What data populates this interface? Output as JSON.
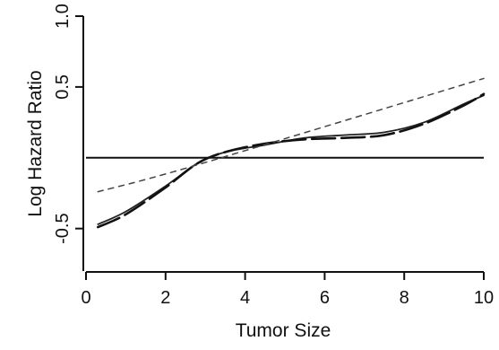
{
  "chart_data": {
    "type": "line",
    "title": "",
    "xlabel": "Tumor Size",
    "ylabel": "Log Hazard Ratio",
    "xlim": [
      0,
      10
    ],
    "ylim": [
      -0.8,
      1.0
    ],
    "x_ticks": [
      0,
      2,
      4,
      6,
      8,
      10
    ],
    "x_tick_labels": [
      "0",
      "2",
      "4",
      "6",
      "8",
      "10"
    ],
    "y_ticks": [
      -0.5,
      0.5,
      1.0
    ],
    "y_tick_labels": [
      "-0.5",
      "0.5",
      "1.0"
    ],
    "grid": false,
    "legend": "none",
    "reference_line": {
      "y": 0
    },
    "series": [
      {
        "style": "solid",
        "x": [
          0.3,
          1.0,
          2.0,
          2.8,
          3.5,
          4.5,
          5.5,
          6.5,
          7.5,
          8.5,
          9.5,
          10.0
        ],
        "y": [
          -0.47,
          -0.38,
          -0.2,
          -0.04,
          0.04,
          0.09,
          0.14,
          0.16,
          0.18,
          0.25,
          0.38,
          0.44
        ]
      },
      {
        "style": "long-dash",
        "x": [
          0.3,
          1.0,
          2.0,
          2.8,
          3.5,
          4.5,
          5.5,
          6.5,
          7.5,
          8.5,
          9.5,
          10.0
        ],
        "y": [
          -0.49,
          -0.4,
          -0.21,
          -0.04,
          0.04,
          0.1,
          0.13,
          0.14,
          0.16,
          0.24,
          0.37,
          0.45
        ]
      },
      {
        "style": "short-dash",
        "x": [
          0.3,
          2.8,
          10.0
        ],
        "y": [
          -0.24,
          -0.05,
          0.56
        ]
      }
    ]
  }
}
